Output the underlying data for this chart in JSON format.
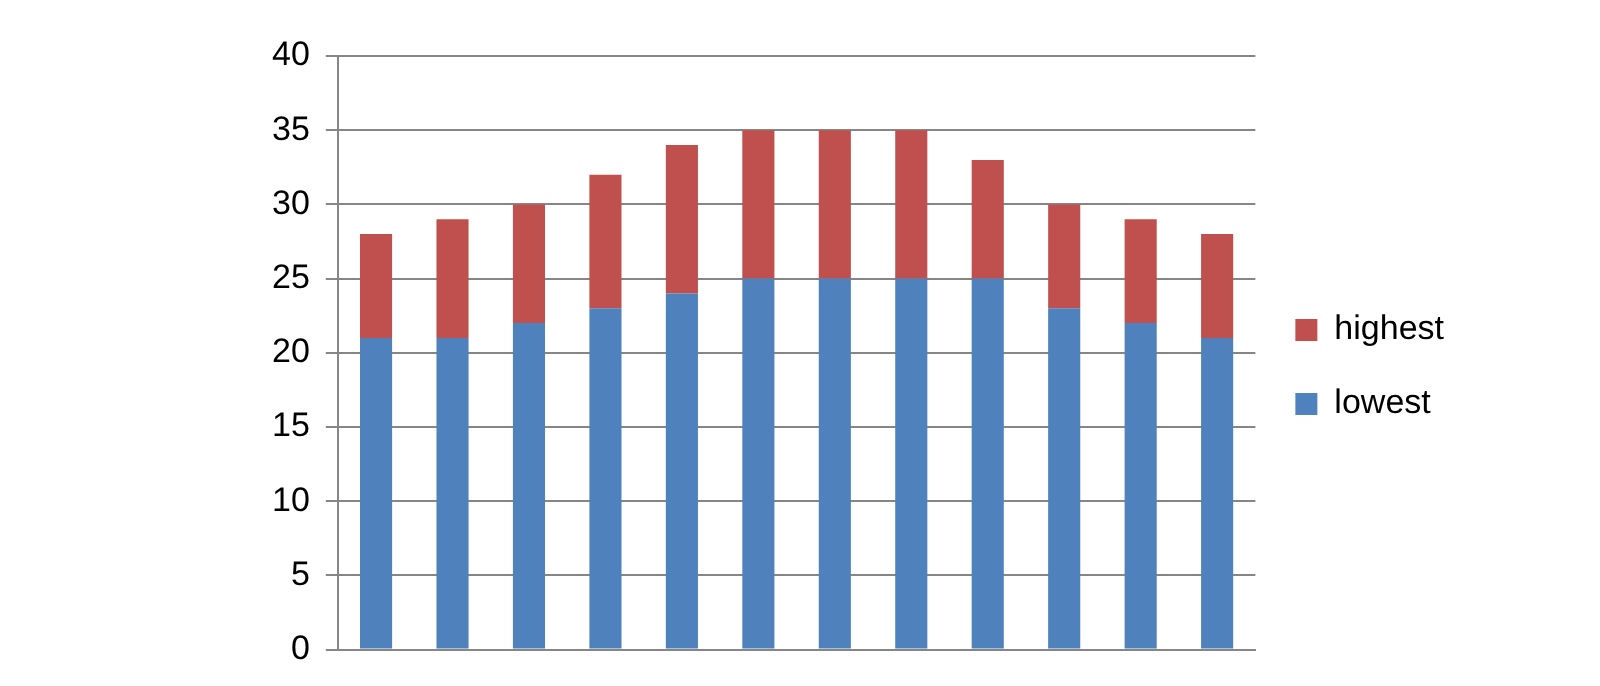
{
  "chart_data": {
    "type": "bar",
    "stacked": true,
    "categories": [
      null,
      null,
      null,
      null,
      null,
      null,
      null,
      null,
      null,
      null,
      null,
      null
    ],
    "series": [
      {
        "name": "lowest",
        "color": "#4f81bd",
        "values": [
          21,
          21,
          22,
          23,
          24,
          25,
          25,
          25,
          25,
          23,
          22,
          21
        ]
      },
      {
        "name": "highest",
        "color": "#c0504d",
        "values": [
          7,
          8,
          8,
          9,
          10,
          10,
          10,
          10,
          8,
          7,
          7,
          7
        ]
      }
    ],
    "ylim": [
      0,
      40
    ],
    "yticks": [
      0,
      5,
      10,
      15,
      20,
      25,
      30,
      35,
      40
    ],
    "grid": "y",
    "legend": "right",
    "tick_labels": "y"
  }
}
